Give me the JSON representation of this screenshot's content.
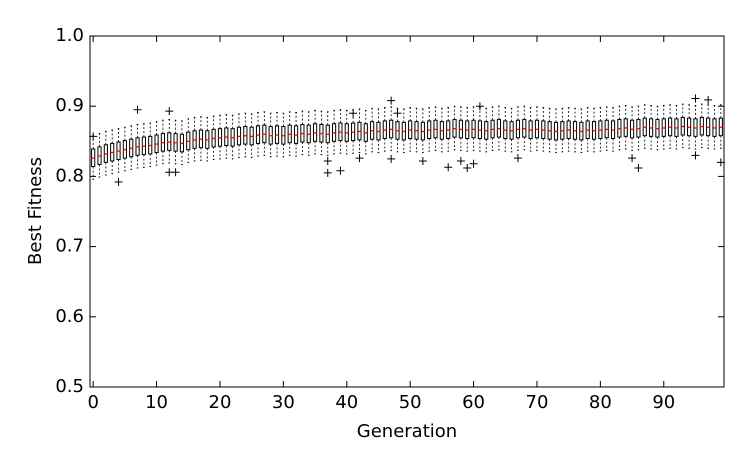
{
  "chart_data": {
    "type": "box",
    "xlabel": "Generation",
    "ylabel": "Best Fitness",
    "xlim": [
      -0.5,
      99.5
    ],
    "ylim": [
      0.5,
      1.0
    ],
    "xticks": [
      0,
      10,
      20,
      30,
      40,
      50,
      60,
      70,
      80,
      90
    ],
    "yticks": [
      0.5,
      0.6,
      0.7,
      0.8,
      0.9,
      {
        "value": 1,
        "label": "1.0"
      }
    ],
    "grid": false,
    "box_color": "#000000",
    "median_color": "#ff0000",
    "flier_color": "#000000",
    "x": [
      0,
      1,
      2,
      3,
      4,
      5,
      6,
      7,
      8,
      9,
      10,
      11,
      12,
      13,
      14,
      15,
      16,
      17,
      18,
      19,
      20,
      21,
      22,
      23,
      24,
      25,
      26,
      27,
      28,
      29,
      30,
      31,
      32,
      33,
      34,
      35,
      36,
      37,
      38,
      39,
      40,
      41,
      42,
      43,
      44,
      45,
      46,
      47,
      48,
      49,
      50,
      51,
      52,
      53,
      54,
      55,
      56,
      57,
      58,
      59,
      60,
      61,
      62,
      63,
      64,
      65,
      66,
      67,
      68,
      69,
      70,
      71,
      72,
      73,
      74,
      75,
      76,
      77,
      78,
      79,
      80,
      81,
      82,
      83,
      84,
      85,
      86,
      87,
      88,
      89,
      90,
      91,
      92,
      93,
      94,
      95,
      96,
      97,
      98,
      99
    ],
    "whislo": [
      0.796,
      0.799,
      0.802,
      0.804,
      0.806,
      0.808,
      0.81,
      0.812,
      0.813,
      0.814,
      0.816,
      0.818,
      0.819,
      0.818,
      0.817,
      0.82,
      0.822,
      0.823,
      0.822,
      0.824,
      0.825,
      0.826,
      0.825,
      0.827,
      0.828,
      0.827,
      0.829,
      0.83,
      0.828,
      0.829,
      0.828,
      0.83,
      0.829,
      0.831,
      0.83,
      0.832,
      0.831,
      0.83,
      0.832,
      0.833,
      0.832,
      0.833,
      0.834,
      0.832,
      0.835,
      0.834,
      0.836,
      0.837,
      0.835,
      0.834,
      0.836,
      0.835,
      0.834,
      0.836,
      0.837,
      0.835,
      0.836,
      0.838,
      0.837,
      0.836,
      0.837,
      0.836,
      0.835,
      0.837,
      0.838,
      0.836,
      0.835,
      0.837,
      0.838,
      0.836,
      0.837,
      0.836,
      0.835,
      0.834,
      0.835,
      0.836,
      0.835,
      0.834,
      0.836,
      0.835,
      0.836,
      0.837,
      0.836,
      0.838,
      0.839,
      0.837,
      0.838,
      0.84,
      0.839,
      0.838,
      0.839,
      0.84,
      0.839,
      0.841,
      0.84,
      0.839,
      0.841,
      0.84,
      0.839,
      0.84
    ],
    "q1": [
      0.814,
      0.817,
      0.82,
      0.822,
      0.824,
      0.826,
      0.828,
      0.83,
      0.831,
      0.832,
      0.834,
      0.836,
      0.837,
      0.836,
      0.835,
      0.838,
      0.84,
      0.841,
      0.84,
      0.842,
      0.843,
      0.844,
      0.843,
      0.845,
      0.846,
      0.845,
      0.847,
      0.848,
      0.846,
      0.847,
      0.846,
      0.848,
      0.847,
      0.849,
      0.848,
      0.85,
      0.849,
      0.848,
      0.85,
      0.851,
      0.85,
      0.851,
      0.852,
      0.85,
      0.853,
      0.852,
      0.854,
      0.855,
      0.853,
      0.852,
      0.854,
      0.853,
      0.852,
      0.854,
      0.855,
      0.853,
      0.854,
      0.856,
      0.855,
      0.854,
      0.855,
      0.854,
      0.853,
      0.855,
      0.856,
      0.854,
      0.853,
      0.855,
      0.856,
      0.854,
      0.855,
      0.854,
      0.853,
      0.852,
      0.853,
      0.854,
      0.853,
      0.852,
      0.854,
      0.853,
      0.854,
      0.855,
      0.854,
      0.856,
      0.857,
      0.855,
      0.856,
      0.858,
      0.857,
      0.856,
      0.857,
      0.858,
      0.857,
      0.859,
      0.858,
      0.857,
      0.859,
      0.858,
      0.857,
      0.858
    ],
    "median": [
      0.826,
      0.829,
      0.832,
      0.834,
      0.836,
      0.838,
      0.84,
      0.842,
      0.843,
      0.844,
      0.846,
      0.848,
      0.849,
      0.848,
      0.847,
      0.85,
      0.852,
      0.853,
      0.852,
      0.854,
      0.855,
      0.856,
      0.855,
      0.857,
      0.858,
      0.857,
      0.859,
      0.86,
      0.858,
      0.859,
      0.858,
      0.86,
      0.859,
      0.861,
      0.86,
      0.862,
      0.861,
      0.86,
      0.862,
      0.863,
      0.862,
      0.863,
      0.864,
      0.862,
      0.865,
      0.864,
      0.866,
      0.867,
      0.865,
      0.864,
      0.866,
      0.865,
      0.864,
      0.866,
      0.867,
      0.865,
      0.866,
      0.868,
      0.867,
      0.866,
      0.867,
      0.866,
      0.865,
      0.867,
      0.868,
      0.866,
      0.865,
      0.867,
      0.868,
      0.866,
      0.867,
      0.866,
      0.865,
      0.864,
      0.865,
      0.866,
      0.865,
      0.864,
      0.866,
      0.865,
      0.866,
      0.867,
      0.866,
      0.868,
      0.869,
      0.867,
      0.868,
      0.87,
      0.869,
      0.868,
      0.869,
      0.87,
      0.869,
      0.871,
      0.87,
      0.869,
      0.871,
      0.87,
      0.869,
      0.87
    ],
    "q3": [
      0.839,
      0.842,
      0.845,
      0.847,
      0.849,
      0.851,
      0.853,
      0.855,
      0.856,
      0.857,
      0.859,
      0.861,
      0.862,
      0.861,
      0.86,
      0.863,
      0.865,
      0.866,
      0.865,
      0.867,
      0.868,
      0.869,
      0.868,
      0.87,
      0.871,
      0.87,
      0.872,
      0.873,
      0.871,
      0.872,
      0.871,
      0.873,
      0.872,
      0.874,
      0.873,
      0.875,
      0.874,
      0.873,
      0.875,
      0.876,
      0.875,
      0.876,
      0.877,
      0.875,
      0.878,
      0.877,
      0.879,
      0.88,
      0.878,
      0.877,
      0.879,
      0.878,
      0.877,
      0.879,
      0.88,
      0.878,
      0.879,
      0.881,
      0.88,
      0.879,
      0.88,
      0.879,
      0.878,
      0.88,
      0.881,
      0.879,
      0.878,
      0.88,
      0.881,
      0.879,
      0.88,
      0.879,
      0.878,
      0.877,
      0.878,
      0.879,
      0.878,
      0.877,
      0.879,
      0.878,
      0.879,
      0.88,
      0.879,
      0.881,
      0.882,
      0.88,
      0.881,
      0.883,
      0.882,
      0.881,
      0.882,
      0.883,
      0.882,
      0.884,
      0.883,
      0.882,
      0.884,
      0.883,
      0.882,
      0.883
    ],
    "whishi": [
      0.858,
      0.861,
      0.864,
      0.866,
      0.868,
      0.87,
      0.872,
      0.874,
      0.875,
      0.876,
      0.878,
      0.88,
      0.881,
      0.88,
      0.879,
      0.882,
      0.884,
      0.885,
      0.884,
      0.886,
      0.887,
      0.888,
      0.887,
      0.889,
      0.89,
      0.889,
      0.891,
      0.892,
      0.89,
      0.891,
      0.89,
      0.892,
      0.891,
      0.893,
      0.892,
      0.894,
      0.893,
      0.892,
      0.894,
      0.895,
      0.894,
      0.895,
      0.896,
      0.894,
      0.897,
      0.896,
      0.898,
      0.899,
      0.897,
      0.896,
      0.898,
      0.897,
      0.896,
      0.898,
      0.899,
      0.897,
      0.898,
      0.9,
      0.899,
      0.898,
      0.899,
      0.898,
      0.897,
      0.899,
      0.9,
      0.898,
      0.897,
      0.899,
      0.9,
      0.898,
      0.899,
      0.898,
      0.897,
      0.896,
      0.897,
      0.898,
      0.897,
      0.896,
      0.898,
      0.897,
      0.898,
      0.899,
      0.898,
      0.9,
      0.901,
      0.899,
      0.9,
      0.902,
      0.901,
      0.9,
      0.901,
      0.902,
      0.901,
      0.903,
      0.902,
      0.901,
      0.903,
      0.902,
      0.901,
      0.902
    ],
    "fliers": {
      "x": [
        0,
        4,
        7,
        12,
        12,
        13,
        37,
        37,
        39,
        41,
        42,
        47,
        47,
        48,
        52,
        56,
        58,
        59,
        60,
        61,
        67,
        85,
        86,
        95,
        95,
        97,
        99
      ],
      "y": [
        0.857,
        0.792,
        0.895,
        0.893,
        0.806,
        0.806,
        0.805,
        0.822,
        0.808,
        0.89,
        0.826,
        0.908,
        0.825,
        0.89,
        0.822,
        0.813,
        0.822,
        0.812,
        0.818,
        0.9,
        0.826,
        0.826,
        0.812,
        0.911,
        0.83,
        0.909,
        0.82
      ]
    }
  }
}
